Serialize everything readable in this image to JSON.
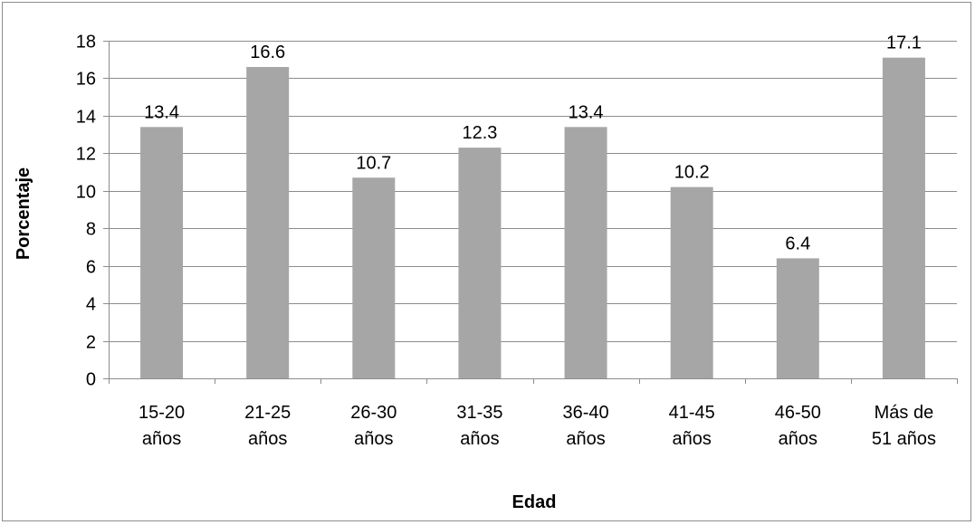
{
  "chart_data": {
    "type": "bar",
    "title": "",
    "xlabel": "Edad",
    "ylabel": "Porcentaje",
    "ylim": [
      0,
      18
    ],
    "yticks": [
      0,
      2,
      4,
      6,
      8,
      10,
      12,
      14,
      16,
      18
    ],
    "categories": [
      [
        "15-20",
        "años"
      ],
      [
        "21-25",
        "años"
      ],
      [
        "26-30",
        "años"
      ],
      [
        "31-35",
        "años"
      ],
      [
        "36-40",
        "años"
      ],
      [
        "41-45",
        "años"
      ],
      [
        "46-50",
        "años"
      ],
      [
        "Más de",
        "51 años"
      ]
    ],
    "values": [
      13.4,
      16.6,
      10.7,
      12.3,
      13.4,
      10.2,
      6.4,
      17.1
    ],
    "data_labels": [
      "13.4",
      "16.6",
      "10.7",
      "12.3",
      "13.4",
      "10.2",
      "6.4",
      "17.1"
    ],
    "grid": true,
    "legend": "none",
    "colors": {
      "bar": "#a6a6a6",
      "grid": "#8c8c8c",
      "axis": "#8c8c8c",
      "frame": "#8c8c8c",
      "text": "#000000"
    }
  }
}
